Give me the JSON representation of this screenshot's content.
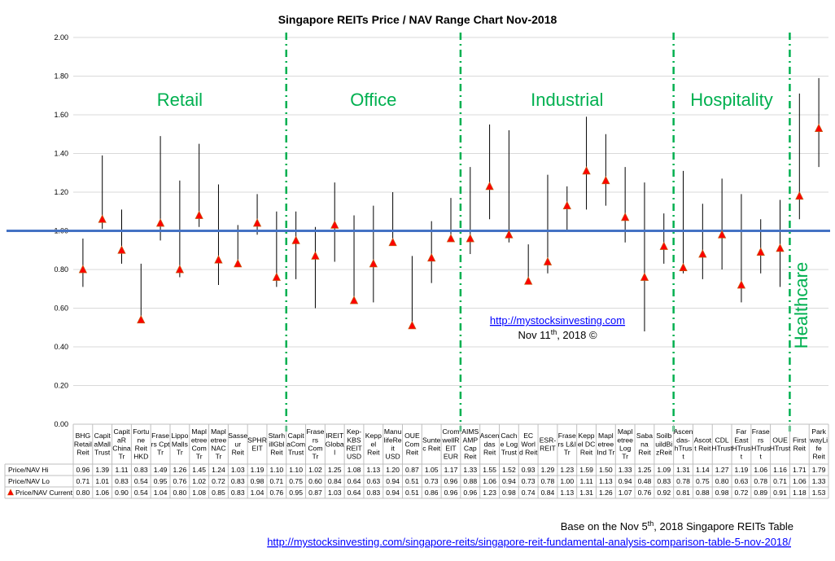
{
  "chart_data": {
    "type": "range",
    "title": "Singapore REITs Price / NAV Range Chart Nov-2018",
    "ylim": [
      0,
      2
    ],
    "yticks": [
      "0.00",
      "0.20",
      "0.40",
      "0.60",
      "0.80",
      "1.00",
      "1.20",
      "1.40",
      "1.60",
      "1.80",
      "2.00"
    ],
    "reference_line": 1.0,
    "categories": [
      [
        "BHG",
        "Retail",
        "Reit"
      ],
      [
        "Capit",
        "aMall",
        "Trust"
      ],
      [
        "Capit",
        "aR",
        "China",
        "Tr"
      ],
      [
        "Fortu",
        "ne",
        "Reit",
        "HKD"
      ],
      [
        "Frase",
        "rs Cpt",
        "Tr"
      ],
      [
        "Lippo",
        "Malls",
        "Tr"
      ],
      [
        "Mapl",
        "etree",
        "Com",
        "Tr"
      ],
      [
        "Mapl",
        "etree",
        "NAC",
        "Tr"
      ],
      [
        "Sasse",
        "ur",
        "Reit"
      ],
      [
        "SPHR",
        "EIT"
      ],
      [
        "Starh",
        "illGbl",
        "Reit"
      ],
      [
        "Capit",
        "aCom",
        "Trust"
      ],
      [
        "Frase",
        "rs",
        "Com",
        "Tr"
      ],
      [
        "IREIT",
        "Globa",
        "l"
      ],
      [
        "Kep-",
        "KBS",
        "REIT",
        "USD"
      ],
      [
        "Kepp",
        "el",
        "Reit"
      ],
      [
        "Manu",
        "lifeRe",
        "it",
        "USD"
      ],
      [
        "OUE",
        "Com",
        "Reit"
      ],
      [
        "Sunte",
        "c Reit"
      ],
      [
        "Crom",
        "wellR",
        "EIT",
        "EUR"
      ],
      [
        "AIMS",
        "AMP",
        "Cap",
        "Reit"
      ],
      [
        "Ascen",
        "das",
        "Reit"
      ],
      [
        "Cach",
        "e Log",
        "Trust"
      ],
      [
        "EC",
        "Worl",
        "d Reit"
      ],
      [
        "ESR-",
        "REIT"
      ],
      [
        "Frase",
        "rs L&I",
        "Tr"
      ],
      [
        "Kepp",
        "el DC",
        "Reit"
      ],
      [
        "Mapl",
        "etree",
        "Ind Tr"
      ],
      [
        "Mapl",
        "etree",
        "Log",
        "Tr"
      ],
      [
        "Saba",
        "na",
        "Reit"
      ],
      [
        "Soilb",
        "uildBi",
        "zReit"
      ],
      [
        "Ascen",
        "das-",
        "hTrus",
        "t"
      ],
      [
        "Ascot",
        "t Reit"
      ],
      [
        "CDL",
        "HTrust"
      ],
      [
        "Far",
        "East",
        "HTrus",
        "t"
      ],
      [
        "Frase",
        "rs",
        "HTrus",
        "t"
      ],
      [
        "OUE",
        "HTrust"
      ],
      [
        "First",
        "Reit"
      ],
      [
        "Park",
        "wayLi",
        "fe",
        "Reit"
      ]
    ],
    "series": [
      {
        "name": "Price/NAV Hi",
        "values": [
          "0.96",
          "1.39",
          "1.11",
          "0.83",
          "1.49",
          "1.26",
          "1.45",
          "1.24",
          "1.03",
          "1.19",
          "1.10",
          "1.10",
          "1.02",
          "1.25",
          "1.08",
          "1.13",
          "1.20",
          "0.87",
          "1.05",
          "1.17",
          "1.33",
          "1.55",
          "1.52",
          "0.93",
          "1.29",
          "1.23",
          "1.59",
          "1.50",
          "1.33",
          "1.25",
          "1.09",
          "1.31",
          "1.14",
          "1.27",
          "1.19",
          "1.06",
          "1.16",
          "1.71",
          "1.79"
        ]
      },
      {
        "name": "Price/NAV Lo",
        "values": [
          "0.71",
          "1.01",
          "0.83",
          "0.54",
          "0.95",
          "0.76",
          "1.02",
          "0.72",
          "0.83",
          "0.98",
          "0.71",
          "0.75",
          "0.60",
          "0.84",
          "0.64",
          "0.63",
          "0.94",
          "0.51",
          "0.73",
          "0.96",
          "0.88",
          "1.06",
          "0.94",
          "0.73",
          "0.78",
          "1.00",
          "1.11",
          "1.13",
          "0.94",
          "0.48",
          "0.83",
          "0.78",
          "0.75",
          "0.80",
          "0.63",
          "0.78",
          "0.71",
          "1.06",
          "1.33"
        ]
      },
      {
        "name": "Price/NAV Current",
        "values": [
          "0.80",
          "1.06",
          "0.90",
          "0.54",
          "1.04",
          "0.80",
          "1.08",
          "0.85",
          "0.83",
          "1.04",
          "0.76",
          "0.95",
          "0.87",
          "1.03",
          "0.64",
          "0.83",
          "0.94",
          "0.51",
          "0.86",
          "0.96",
          "0.96",
          "1.23",
          "0.98",
          "0.74",
          "0.84",
          "1.13",
          "1.31",
          "1.26",
          "1.07",
          "0.76",
          "0.92",
          "0.81",
          "0.88",
          "0.98",
          "0.72",
          "0.89",
          "0.91",
          "1.18",
          "1.53"
        ]
      }
    ],
    "sectors": [
      {
        "label": "Retail",
        "start": 0,
        "end": 10
      },
      {
        "label": "Office",
        "start": 11,
        "end": 19
      },
      {
        "label": "Industrial",
        "start": 20,
        "end": 30
      },
      {
        "label": "Hospitality",
        "start": 31,
        "end": 36
      },
      {
        "label": "Healthcare",
        "start": 37,
        "end": 38
      }
    ],
    "colors": {
      "marker": "#FF0000",
      "marker_edge": "#C55A11",
      "reference": "#4472C4",
      "divider": "#00B050",
      "sector_text": "#00B050",
      "range_line": "#000000",
      "grid": "#D9D9D9"
    }
  },
  "annotations": {
    "link1": "http://mystocksinvesting.com",
    "date_main": "Nov 11",
    "date_sup": "th",
    "date_rest": ", 2018 ©",
    "footer_note_pre": "Base on the Nov 5",
    "footer_note_sup": "th",
    "footer_note_post": ", 2018 Singapore REITs Table",
    "footer_link": "http://mystocksinvesting.com/singapore-reits/singapore-reit-fundamental-analysis-comparison-table-5-nov-2018/"
  }
}
